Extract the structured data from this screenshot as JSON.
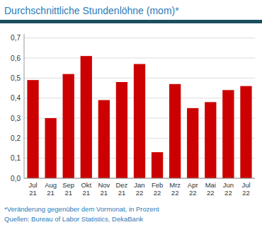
{
  "chart_data": {
    "type": "bar",
    "title": "Durchschnittliche Stundenlöhne (mom)*",
    "categories": [
      "Jul\n21",
      "Aug\n21",
      "Sep\n21",
      "Okt\n21",
      "Nov\n21",
      "Dez\n21",
      "Jan\n22",
      "Feb\n22",
      "Mrz\n22",
      "Apr\n22",
      "Mai\n22",
      "Jun\n22",
      "Jul\n22"
    ],
    "values": [
      0.49,
      0.3,
      0.52,
      0.61,
      0.39,
      0.48,
      0.57,
      0.13,
      0.47,
      0.35,
      0.38,
      0.44,
      0.46
    ],
    "color": "#cc0000",
    "ylim": [
      0.0,
      0.72
    ],
    "yticks": [
      {
        "value": 0.0,
        "label": "0,0"
      },
      {
        "value": 0.1,
        "label": "0,1"
      },
      {
        "value": 0.2,
        "label": "0,2"
      },
      {
        "value": 0.3,
        "label": "0,3"
      },
      {
        "value": 0.4,
        "label": "0,4"
      },
      {
        "value": 0.5,
        "label": "0,5"
      },
      {
        "value": 0.6,
        "label": "0,6"
      },
      {
        "value": 0.7,
        "label": "0,7"
      }
    ],
    "grid": true,
    "annotations": [
      "*Veränderung gegenüber dem Vormonat, in Prozent",
      "Quellen: Bureau of Labor Statistics, DekaBank"
    ]
  }
}
